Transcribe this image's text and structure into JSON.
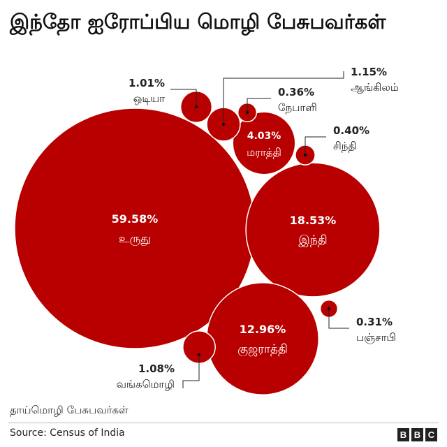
{
  "title": "இந்தோ ஐரோப்பிய மொழி பேசுபவர்கள்",
  "subtitle": "தாய்மொழி பேசுபவர்கள்",
  "source": "Source: Census of India",
  "logo": [
    "B",
    "B",
    "C"
  ],
  "chart_data": {
    "type": "bubble",
    "title": "இந்தோ ஐரோப்பிய மொழி பேசுபவர்கள்",
    "unit": "%",
    "items": [
      {
        "name": "உருது",
        "value": 59.58,
        "label": "59.58%"
      },
      {
        "name": "இந்தி",
        "value": 18.53,
        "label": "18.53%"
      },
      {
        "name": "குஜராத்தி",
        "value": 12.96,
        "label": "12.96%"
      },
      {
        "name": "மராத்தி",
        "value": 4.03,
        "label": "4.03%"
      },
      {
        "name": "ஆங்கிலம்",
        "value": 1.15,
        "label": "1.15%"
      },
      {
        "name": "வங்கமொழி",
        "value": 1.08,
        "label": "1.08%"
      },
      {
        "name": "ஒடியா",
        "value": 1.01,
        "label": "1.01%"
      },
      {
        "name": "சிந்தி",
        "value": 0.4,
        "label": "0.40%"
      },
      {
        "name": "நேபாளி",
        "value": 0.36,
        "label": "0.36%"
      },
      {
        "name": "பஞ்சாபி",
        "value": 0.31,
        "label": "0.31%"
      }
    ],
    "colors": {
      "bubble": "#b80000",
      "inside_text": "#ffffff",
      "outside_text": "#222222",
      "leader": "#222222"
    }
  }
}
